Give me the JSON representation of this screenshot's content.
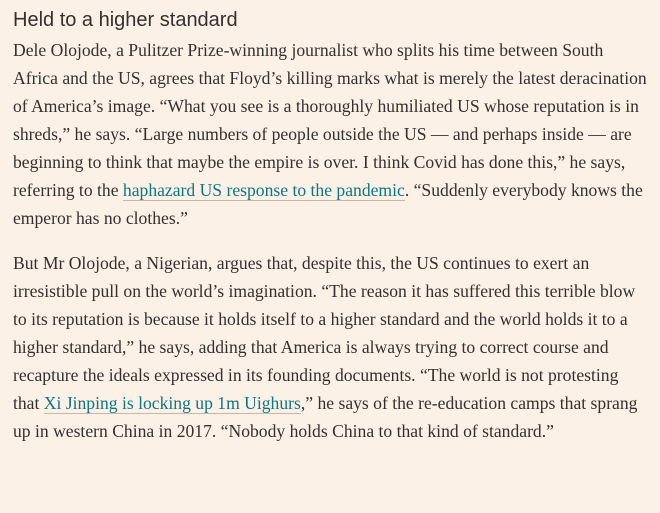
{
  "article": {
    "heading": "Held to a higher standard",
    "paragraph_1": {
      "text_before_link": "Dele Olojode, a Pulitzer Prize-winning journalist who splits his time between South Africa and the US, agrees that Floyd’s killing marks what is merely the latest deracination of America’s image. “What you see is a thoroughly humiliated US whose reputation is in shreds,” he says. “Large numbers of people outside the US — and perhaps inside — are beginning to think that maybe the empire is over. I think Covid has done this,” he says, referring to the ",
      "link_text": "haphazard US response to the pandemic",
      "text_after_link": ". “Suddenly everybody knows the emperor has no clothes.”"
    },
    "paragraph_2": {
      "text_before_link": "But Mr Olojode, a Nigerian, argues that, despite this, the US continues to exert an irresistible pull on the world’s imagination. “The reason it has suffered this terrible blow to its reputation is because it holds itself to a higher standard and the world holds it to a higher standard,” he says, adding that America is always trying to correct course and recapture the ideals expressed in its founding documents. “The world is not protesting that ",
      "link_text": "Xi Jinping is locking up 1m Uighurs",
      "text_after_link": ",” he says of the re-education camps that sprang up in western China in 2017. “Nobody holds China to that kind of standard.”"
    }
  },
  "colors": {
    "background": "#fcf1e6",
    "text": "#33302e",
    "link": "#0d7680"
  }
}
